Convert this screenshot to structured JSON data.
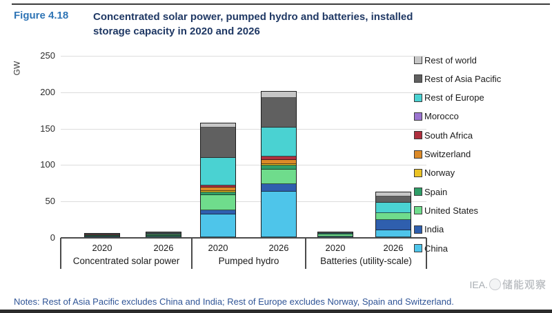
{
  "header": {
    "figure_label": "Figure 4.18",
    "title": "Concentrated solar power, pumped hydro and batteries, installed storage capacity in 2020 and 2026"
  },
  "notes": "Notes: Rest of Asia Pacific excludes China and India; Rest of Europe excludes Norway, Spain and Switzerland.",
  "watermark": {
    "source_label": "IEA.",
    "overlay_text": "储能观察"
  },
  "chart_data": {
    "type": "bar",
    "stacked": true,
    "title": "Concentrated solar power, pumped hydro and batteries, installed storage capacity in 2020 and 2026",
    "xlabel": "",
    "ylabel": "GW",
    "unit": "GW",
    "ylim": [
      0,
      250
    ],
    "yticks": [
      0,
      50,
      100,
      150,
      200,
      250
    ],
    "grid": true,
    "legend_position": "right",
    "groups": [
      "Concentrated solar power",
      "Pumped hydro",
      "Batteries (utility-scale)"
    ],
    "categories": [
      "2020",
      "2026",
      "2020",
      "2026",
      "2020",
      "2026"
    ],
    "bar_totals_gw": [
      6.3,
      8.3,
      158,
      201.5,
      8.8,
      63
    ],
    "series": [
      {
        "name": "China",
        "color": "#4ec5ea",
        "values": [
          0.5,
          1.0,
          32,
          63,
          1.3,
          10
        ]
      },
      {
        "name": "India",
        "color": "#2f5fae",
        "values": [
          0.2,
          0.2,
          5,
          11,
          0.2,
          14
        ]
      },
      {
        "name": "United States",
        "color": "#6fdc8c",
        "values": [
          1.7,
          1.8,
          21,
          20,
          3.5,
          10
        ]
      },
      {
        "name": "Spain",
        "color": "#2f9e68",
        "values": [
          2.3,
          2.3,
          4,
          5.5,
          0.4,
          0
        ]
      },
      {
        "name": "Norway",
        "color": "#ebc324",
        "values": [
          0,
          0,
          2.5,
          1.5,
          0,
          0
        ]
      },
      {
        "name": "Switzerland",
        "color": "#dc8a28",
        "values": [
          0,
          0,
          4.5,
          6,
          0,
          0
        ]
      },
      {
        "name": "South Africa",
        "color": "#ae2f3e",
        "values": [
          0.5,
          0.6,
          3,
          4.5,
          0.1,
          0
        ]
      },
      {
        "name": "Morocco",
        "color": "#9b74d0",
        "values": [
          0.5,
          0.8,
          0,
          0,
          0,
          0
        ]
      },
      {
        "name": "Rest of Europe",
        "color": "#4ad2d2",
        "values": [
          0.3,
          0.4,
          38,
          40,
          1.5,
          15
        ]
      },
      {
        "name": "Rest of Asia Pacific",
        "color": "#606060",
        "values": [
          0,
          0.2,
          42,
          42,
          0.8,
          8.5
        ]
      },
      {
        "name": "Rest of world",
        "color": "#c6c6c6",
        "values": [
          0.3,
          1.0,
          6,
          8,
          1.0,
          5.5
        ]
      }
    ],
    "series_order_note": "series listed bottom-to-top of stack; legend shows reverse order"
  }
}
